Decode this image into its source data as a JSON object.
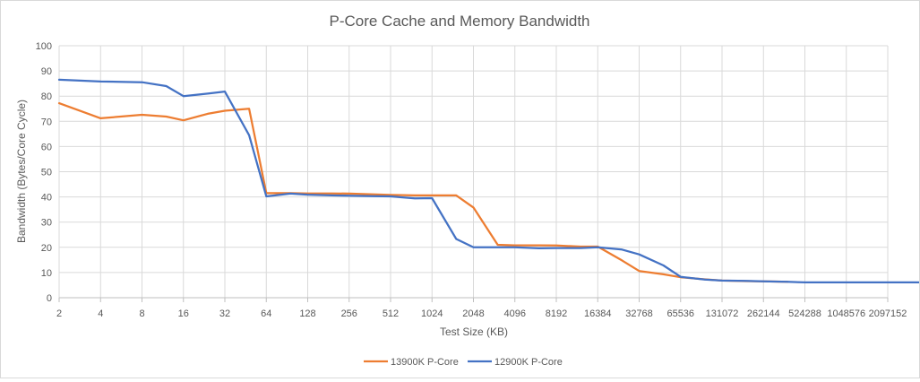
{
  "chart_data": {
    "type": "line",
    "title": "P-Core Cache and Memory Bandwidth",
    "xlabel": "Test Size (KB)",
    "ylabel": "Bandwidth (Bytes/Core Cycle)",
    "ylim": [
      0,
      100
    ],
    "y_ticks": [
      0,
      10,
      20,
      30,
      40,
      50,
      60,
      70,
      80,
      90,
      100
    ],
    "x_scale": "log2",
    "x_tick_labels": [
      "2",
      "4",
      "8",
      "16",
      "32",
      "64",
      "128",
      "256",
      "512",
      "1024",
      "2048",
      "4096",
      "8192",
      "16384",
      "32768",
      "65536",
      "131072",
      "262144",
      "524288",
      "1048576",
      "2097152"
    ],
    "grid": true,
    "legend_position": "bottom",
    "series": [
      {
        "name": "13900K P-Core",
        "color": "#ED7D31",
        "x": [
          2,
          4,
          8,
          12,
          16,
          24,
          32,
          48,
          64,
          96,
          128,
          192,
          256,
          384,
          512,
          768,
          1024,
          1536,
          2048,
          3072,
          4096,
          6144,
          8192,
          12288,
          16384,
          24576,
          32768,
          49152,
          65536,
          98304,
          131072,
          196608,
          262144,
          393216
        ],
        "values": [
          77.2,
          71.2,
          72.6,
          71.9,
          70.4,
          73.0,
          74.2,
          75.0,
          41.5,
          41.5,
          41.4,
          41.4,
          41.3,
          41.0,
          40.8,
          40.6,
          40.6,
          40.6,
          35.8,
          21.0,
          20.8,
          20.8,
          20.7,
          20.3,
          20.3,
          14.8,
          10.6,
          9.3,
          8.1,
          7.3,
          6.8,
          6.6,
          6.5,
          6.3
        ]
      },
      {
        "name": "12900K P-Core",
        "color": "#4472C4",
        "x": [
          2,
          4,
          8,
          12,
          16,
          24,
          32,
          48,
          64,
          96,
          128,
          192,
          256,
          384,
          512,
          768,
          1024,
          1536,
          2048,
          3072,
          4096,
          6144,
          8192,
          12288,
          16384,
          24576,
          32768,
          49152,
          65536,
          98304,
          131072,
          196608,
          262144,
          393216,
          524288,
          1048576,
          2097152,
          4194304
        ],
        "values": [
          86.5,
          85.8,
          85.5,
          84.0,
          80.0,
          81.0,
          81.8,
          64.5,
          40.2,
          41.3,
          40.9,
          40.6,
          40.5,
          40.3,
          40.2,
          39.4,
          39.5,
          23.3,
          20.0,
          20.0,
          20.0,
          19.6,
          19.7,
          19.7,
          20.0,
          19.1,
          17.2,
          12.8,
          8.3,
          7.2,
          6.8,
          6.7,
          6.5,
          6.3,
          6.1,
          6.1,
          6.1,
          6.1
        ]
      }
    ]
  }
}
